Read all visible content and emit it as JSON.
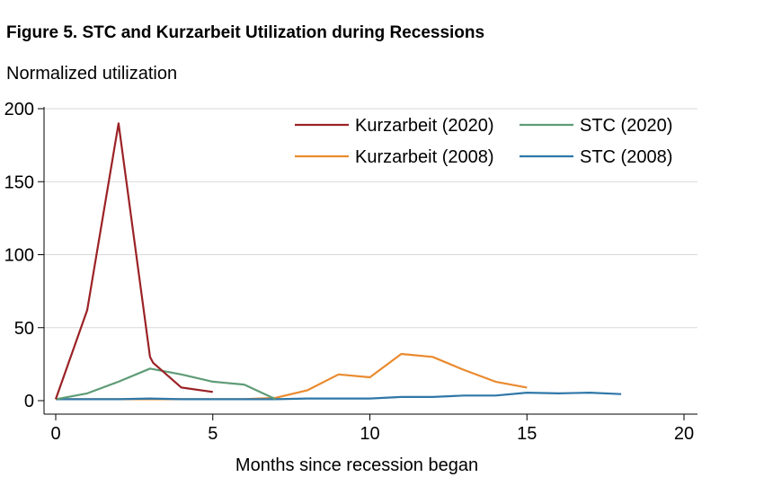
{
  "chart_data": {
    "type": "line",
    "title": "Figure 5. STC and Kurzarbeit Utilization during Recessions",
    "ylabel": "Normalized utilization",
    "xlabel": "Months since recession began",
    "xlim": [
      0,
      20
    ],
    "ylim": [
      0,
      200
    ],
    "xticks": [
      0,
      5,
      10,
      15,
      20
    ],
    "yticks": [
      0,
      50,
      100,
      150,
      200
    ],
    "grid": "horizontal",
    "legend_position": "top-right",
    "series": [
      {
        "name": "Kurzarbeit (2020)",
        "color": "#9b2226",
        "x": [
          0,
          1,
          2,
          3,
          3.1,
          4,
          5
        ],
        "y": [
          1,
          62,
          190,
          30,
          26,
          9,
          6
        ]
      },
      {
        "name": "STC (2020)",
        "color": "#5e9c76",
        "x": [
          0,
          1,
          2,
          3,
          4,
          5,
          6,
          7
        ],
        "y": [
          1,
          5,
          13,
          22,
          18,
          13,
          11,
          1
        ]
      },
      {
        "name": "Kurzarbeit (2008)",
        "color": "#ea8a2e",
        "x": [
          0,
          1,
          2,
          3,
          4,
          5,
          6,
          7,
          8,
          9,
          10,
          11,
          12,
          13,
          14,
          15
        ],
        "y": [
          1,
          1,
          1,
          1,
          1,
          1,
          1,
          2,
          7,
          18,
          16,
          32,
          30,
          21,
          13,
          9
        ]
      },
      {
        "name": "STC (2008)",
        "color": "#2f77a8",
        "x": [
          0,
          1,
          2,
          3,
          4,
          5,
          6,
          7,
          8,
          9,
          10,
          11,
          12,
          13,
          14,
          15,
          16,
          17,
          18
        ],
        "y": [
          1,
          1,
          1,
          1.5,
          1,
          1,
          1,
          1,
          1.5,
          1.5,
          1.5,
          2.5,
          2.5,
          3.5,
          3.5,
          5.5,
          5,
          5.5,
          4.5
        ]
      }
    ]
  }
}
